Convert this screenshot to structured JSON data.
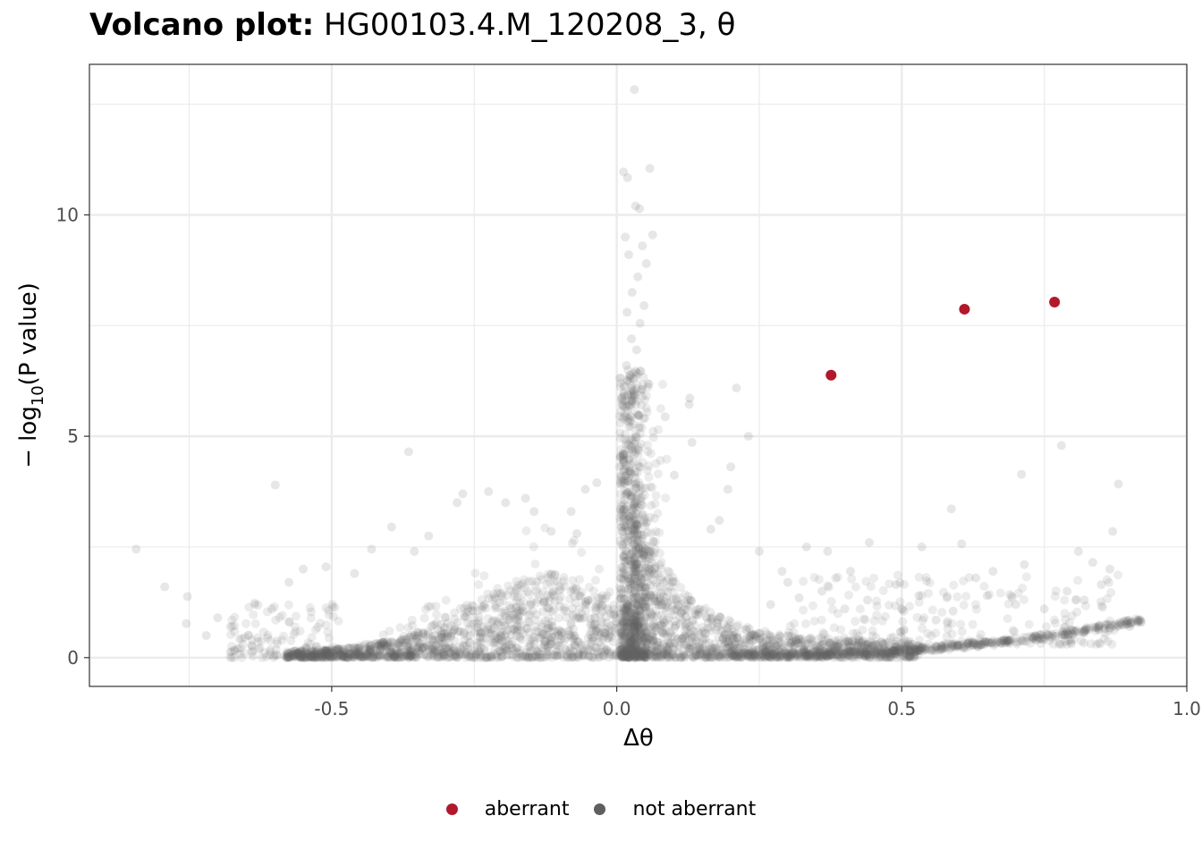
{
  "title_bold": "Volcano plot:",
  "title_rest": "HG00103.4.M_120208_3, θ",
  "colors": {
    "aberrant": "#B2182B",
    "not_aberrant": "#5F5F5F",
    "grid": "#EBEBEB",
    "axis_text": "#4D4D4D"
  },
  "chart_data": {
    "type": "scatter",
    "xlabel": "Δθ",
    "ylabel_prefix": "− log",
    "ylabel_sub": "10",
    "ylabel_suffix": "(P value)",
    "xlim": [
      -0.925,
      1.0
    ],
    "ylim": [
      -0.65,
      13.4
    ],
    "x_ticks": [
      -0.5,
      0.0,
      0.5,
      1.0
    ],
    "x_tick_labels": [
      "-0.5",
      "0.0",
      "0.5",
      "1.0"
    ],
    "y_ticks": [
      0,
      5,
      10
    ],
    "y_tick_labels": [
      "0",
      "5",
      "10"
    ],
    "grid": true,
    "legend_position": "bottom",
    "series": [
      {
        "name": "aberrant",
        "color": "#B2182B",
        "points": [
          [
            0.376,
            6.38
          ],
          [
            0.61,
            7.87
          ],
          [
            0.768,
            8.03
          ]
        ]
      },
      {
        "name": "not aberrant",
        "color": "#5F5F5F",
        "points": [
          [
            0.031,
            12.83
          ],
          [
            0.058,
            11.05
          ],
          [
            0.012,
            10.97
          ],
          [
            0.019,
            10.84
          ],
          [
            0.033,
            10.2
          ],
          [
            0.04,
            10.14
          ],
          [
            0.015,
            9.5
          ],
          [
            0.063,
            9.55
          ],
          [
            0.045,
            9.3
          ],
          [
            0.052,
            8.9
          ],
          [
            0.021,
            9.1
          ],
          [
            0.037,
            8.6
          ],
          [
            0.027,
            8.25
          ],
          [
            0.048,
            7.95
          ],
          [
            0.018,
            7.8
          ],
          [
            0.041,
            7.55
          ],
          [
            0.026,
            7.2
          ],
          [
            0.035,
            6.95
          ],
          [
            0.017,
            6.6
          ],
          [
            0.03,
            6.3
          ],
          [
            0.044,
            6.05
          ],
          [
            0.022,
            5.8
          ],
          [
            0.128,
            5.86
          ],
          [
            0.127,
            5.72
          ],
          [
            0.21,
            6.09
          ],
          [
            0.231,
            5.0
          ],
          [
            0.085,
            5.44
          ],
          [
            0.132,
            4.86
          ],
          [
            0.2,
            4.31
          ],
          [
            0.195,
            3.8
          ],
          [
            -0.365,
            4.65
          ],
          [
            -0.599,
            3.9
          ],
          [
            -0.843,
            2.45
          ],
          [
            -0.793,
            1.6
          ],
          [
            -0.753,
            1.38
          ],
          [
            -0.755,
            0.77
          ],
          [
            -0.72,
            0.5
          ],
          [
            -0.7,
            0.9
          ],
          [
            -0.665,
            0.2
          ],
          [
            -0.64,
            0.25
          ],
          [
            -0.605,
            1.1
          ],
          [
            -0.575,
            1.7
          ],
          [
            -0.55,
            2.0
          ],
          [
            -0.51,
            2.05
          ],
          [
            -0.46,
            1.9
          ],
          [
            -0.43,
            2.45
          ],
          [
            -0.395,
            2.95
          ],
          [
            -0.355,
            2.4
          ],
          [
            -0.33,
            2.75
          ],
          [
            -0.28,
            3.5
          ],
          [
            -0.27,
            3.7
          ],
          [
            -0.225,
            3.75
          ],
          [
            -0.195,
            3.5
          ],
          [
            -0.16,
            3.6
          ],
          [
            -0.145,
            3.3
          ],
          [
            -0.115,
            2.85
          ],
          [
            -0.08,
            3.3
          ],
          [
            -0.055,
            3.8
          ],
          [
            -0.035,
            3.95
          ],
          [
            -0.07,
            2.8
          ],
          [
            0.101,
            4.12
          ],
          [
            0.165,
            2.9
          ],
          [
            0.18,
            3.1
          ],
          [
            0.25,
            2.4
          ],
          [
            0.29,
            1.95
          ],
          [
            0.333,
            2.5
          ],
          [
            0.37,
            2.4
          ],
          [
            0.41,
            1.95
          ],
          [
            0.443,
            2.6
          ],
          [
            0.49,
            1.65
          ],
          [
            0.53,
            1.4
          ],
          [
            0.535,
            2.5
          ],
          [
            0.587,
            3.36
          ],
          [
            0.605,
            2.57
          ],
          [
            0.63,
            1.8
          ],
          [
            0.66,
            1.95
          ],
          [
            0.71,
            4.14
          ],
          [
            0.715,
            2.1
          ],
          [
            0.78,
            4.79
          ],
          [
            0.81,
            2.4
          ],
          [
            0.835,
            2.15
          ],
          [
            0.865,
            2.0
          ],
          [
            0.87,
            2.85
          ],
          [
            0.88,
            3.92
          ],
          [
            0.85,
            1.65
          ],
          [
            0.82,
            1.3
          ],
          [
            0.79,
            1.5
          ],
          [
            0.75,
            1.1
          ],
          [
            0.7,
            1.2
          ],
          [
            0.65,
            1.4
          ],
          [
            0.59,
            1.05
          ],
          [
            0.56,
            0.85
          ],
          [
            0.5,
            1.1
          ],
          [
            0.44,
            1.3
          ],
          [
            0.4,
            1.1
          ],
          [
            0.36,
            1.5
          ],
          [
            0.32,
            1.35
          ],
          [
            0.3,
            1.7
          ],
          [
            0.27,
            1.2
          ],
          [
            0.92,
            0.8
          ],
          [
            0.9,
            0.7
          ]
        ]
      }
    ]
  }
}
